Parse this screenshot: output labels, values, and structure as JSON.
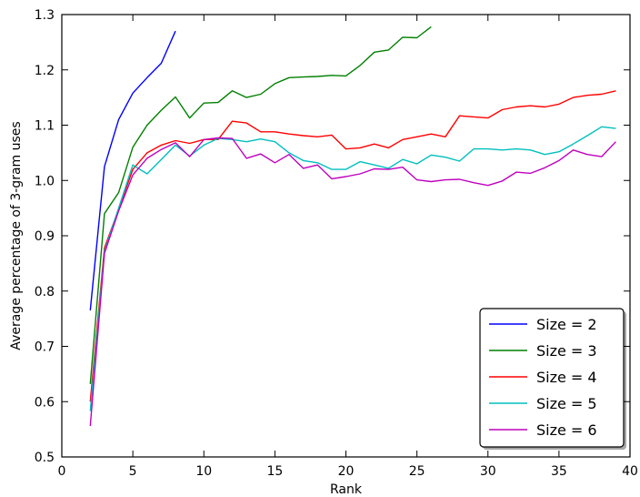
{
  "chart_data": {
    "type": "line",
    "title": "",
    "xlabel": "Rank",
    "ylabel": "Average percentage of 3-gram uses",
    "xlim": [
      0,
      40
    ],
    "ylim": [
      0.5,
      1.3
    ],
    "xticks": [
      0,
      5,
      10,
      15,
      20,
      25,
      30,
      35,
      40
    ],
    "xtick_labels": [
      "0",
      "5",
      "10",
      "15",
      "20",
      "25",
      "30",
      "35",
      "40"
    ],
    "yticks": [
      0.5,
      0.6,
      0.7,
      0.8,
      0.9,
      1.0,
      1.1,
      1.2,
      1.3
    ],
    "ytick_labels": [
      "0.5",
      "0.6",
      "0.7",
      "0.8",
      "0.9",
      "1.0",
      "1.1",
      "1.2",
      "1.3"
    ],
    "grid": false,
    "legend_position": "bottom-right",
    "series": [
      {
        "name": "Size = 2",
        "color": "#0000ff",
        "x": [
          2,
          3,
          4,
          5,
          6,
          7,
          8
        ],
        "y": [
          0.765,
          1.025,
          1.11,
          1.158,
          1.186,
          1.212,
          1.27
        ]
      },
      {
        "name": "Size = 3",
        "color": "#008000",
        "x": [
          2,
          3,
          4,
          5,
          6,
          7,
          8,
          9,
          10,
          11,
          12,
          13,
          14,
          15,
          16,
          17,
          18,
          19,
          20,
          21,
          22,
          23,
          24,
          25,
          26
        ],
        "y": [
          0.632,
          0.94,
          0.978,
          1.06,
          1.1,
          1.127,
          1.151,
          1.113,
          1.14,
          1.141,
          1.162,
          1.15,
          1.156,
          1.175,
          1.186,
          1.187,
          1.188,
          1.19,
          1.189,
          1.208,
          1.232,
          1.236,
          1.259,
          1.258,
          1.278
        ]
      },
      {
        "name": "Size = 4",
        "color": "#ff0000",
        "x": [
          2,
          3,
          4,
          5,
          6,
          7,
          8,
          9,
          10,
          11,
          12,
          13,
          14,
          15,
          16,
          17,
          18,
          19,
          20,
          21,
          22,
          23,
          24,
          25,
          26,
          27,
          28,
          29,
          30,
          31,
          32,
          33,
          34,
          35,
          36,
          37,
          38,
          39
        ],
        "y": [
          0.6,
          0.878,
          0.948,
          1.02,
          1.05,
          1.064,
          1.072,
          1.067,
          1.074,
          1.074,
          1.107,
          1.104,
          1.088,
          1.088,
          1.084,
          1.081,
          1.079,
          1.082,
          1.057,
          1.059,
          1.066,
          1.059,
          1.074,
          1.079,
          1.084,
          1.079,
          1.117,
          1.115,
          1.113,
          1.128,
          1.133,
          1.135,
          1.133,
          1.138,
          1.15,
          1.154,
          1.156,
          1.162
        ]
      },
      {
        "name": "Size = 5",
        "color": "#00bfbf",
        "x": [
          2,
          3,
          4,
          5,
          6,
          7,
          8,
          9,
          10,
          11,
          12,
          13,
          14,
          15,
          16,
          17,
          18,
          19,
          20,
          21,
          22,
          23,
          24,
          25,
          26,
          27,
          28,
          29,
          30,
          31,
          32,
          33,
          34,
          35,
          36,
          37,
          38,
          39
        ],
        "y": [
          0.583,
          0.872,
          0.95,
          1.028,
          1.012,
          1.038,
          1.064,
          1.044,
          1.064,
          1.076,
          1.074,
          1.07,
          1.075,
          1.07,
          1.05,
          1.036,
          1.032,
          1.02,
          1.02,
          1.034,
          1.028,
          1.022,
          1.038,
          1.03,
          1.046,
          1.042,
          1.035,
          1.057,
          1.057,
          1.055,
          1.057,
          1.055,
          1.047,
          1.052,
          1.066,
          1.081,
          1.097,
          1.094
        ]
      },
      {
        "name": "Size = 6",
        "color": "#bf00bf",
        "x": [
          2,
          3,
          4,
          5,
          6,
          7,
          8,
          9,
          10,
          11,
          12,
          13,
          14,
          15,
          16,
          17,
          18,
          19,
          20,
          21,
          22,
          23,
          24,
          25,
          26,
          27,
          28,
          29,
          30,
          31,
          32,
          33,
          34,
          35,
          36,
          37,
          38,
          39
        ],
        "y": [
          0.556,
          0.868,
          0.945,
          1.01,
          1.04,
          1.056,
          1.068,
          1.043,
          1.074,
          1.077,
          1.076,
          1.04,
          1.048,
          1.032,
          1.047,
          1.022,
          1.028,
          1.003,
          1.007,
          1.012,
          1.021,
          1.02,
          1.024,
          1.001,
          0.998,
          1.001,
          1.002,
          0.996,
          0.991,
          0.999,
          1.015,
          1.013,
          1.023,
          1.036,
          1.055,
          1.047,
          1.043,
          1.07
        ]
      }
    ]
  }
}
